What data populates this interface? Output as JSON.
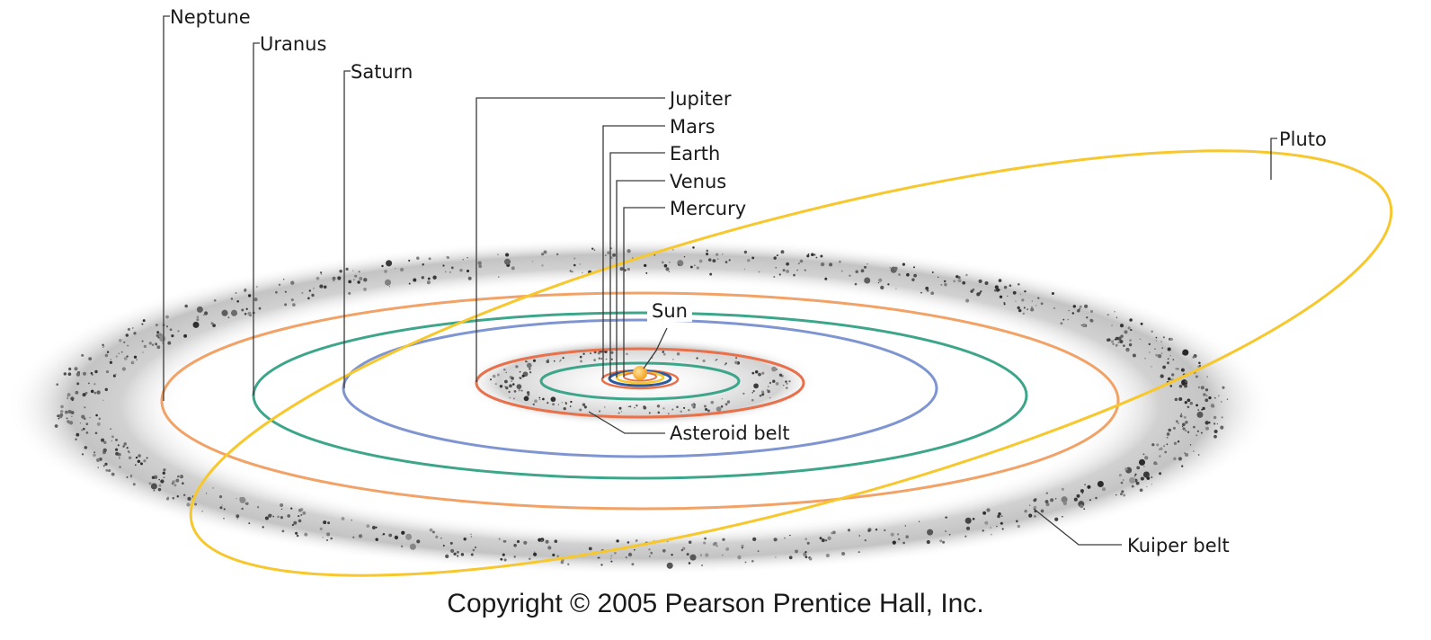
{
  "diagram": {
    "labels": {
      "neptune": "Neptune",
      "uranus": "Uranus",
      "saturn": "Saturn",
      "jupiter": "Jupiter",
      "mars": "Mars",
      "earth": "Earth",
      "venus": "Venus",
      "mercury": "Mercury",
      "pluto": "Pluto",
      "sun": "Sun",
      "asteroid_belt": "Asteroid belt",
      "kuiper_belt": "Kuiper belt"
    },
    "colors": {
      "pluto_orbit": "#f7c72e",
      "neptune_orbit": "#f2a266",
      "uranus_orbit": "#3da68a",
      "saturn_orbit": "#7f95d1",
      "jupiter_orbit": "#e8704a",
      "asteroid_belt_orbit": "#3da68a",
      "mars_orbit": "#e8704a",
      "earth_orbit": "#2c5aa0",
      "venus_orbit": "#f7c72e",
      "mercury_orbit": "#e8704a",
      "sun": "#f5a11e",
      "belt_dust": "#9a9a9a"
    }
  },
  "footer": {
    "copyright": "Copyright © 2005 Pearson Prentice Hall, Inc."
  }
}
